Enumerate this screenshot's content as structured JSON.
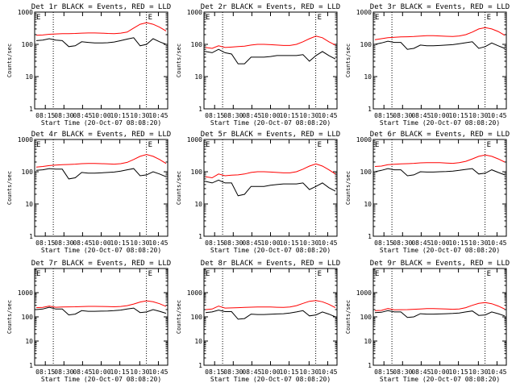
{
  "colors": {
    "events": "#000000",
    "lld": "#ff0000",
    "axes": "#000000",
    "background": "#ffffff"
  },
  "shared": {
    "ylabel": "Counts/sec",
    "xlabel": "Start Time (20-Oct-07 08:08:20)",
    "yticks": [
      "1",
      "10",
      "100",
      "1000"
    ],
    "xticks": [
      "08:15",
      "08:30",
      "08:45",
      "10:00",
      "10:15",
      "10:30",
      "10:45"
    ],
    "marker_label": "E"
  },
  "chart_data": [
    {
      "type": "line",
      "title": "Det 1r BLACK = Events, RED = LLD",
      "ylim": [
        1,
        1000
      ],
      "yscale": "log",
      "series": [
        {
          "color": "events",
          "values": [
            130,
            135,
            150,
            135,
            130,
            85,
            90,
            120,
            115,
            110,
            110,
            112,
            118,
            130,
            145,
            160,
            90,
            100,
            150,
            120,
            100
          ]
        },
        {
          "color": "lld",
          "values": [
            190,
            195,
            205,
            210,
            215,
            215,
            218,
            222,
            225,
            225,
            222,
            218,
            215,
            222,
            240,
            320,
            420,
            470,
            420,
            340,
            260
          ]
        }
      ]
    },
    {
      "type": "line",
      "title": "Det 2r BLACK = Events, RED = LLD",
      "ylim": [
        1,
        1000
      ],
      "yscale": "log",
      "series": [
        {
          "color": "events",
          "values": [
            60,
            55,
            70,
            55,
            50,
            25,
            25,
            40,
            40,
            40,
            42,
            45,
            45,
            45,
            45,
            48,
            30,
            45,
            60,
            45,
            35
          ]
        },
        {
          "color": "lld",
          "values": [
            80,
            75,
            90,
            80,
            82,
            85,
            88,
            95,
            100,
            100,
            98,
            95,
            92,
            92,
            100,
            120,
            150,
            180,
            160,
            120,
            95
          ]
        }
      ]
    },
    {
      "type": "line",
      "title": "Det 3r BLACK = Events, RED = LLD",
      "ylim": [
        1,
        1000
      ],
      "yscale": "log",
      "series": [
        {
          "color": "events",
          "values": [
            100,
            110,
            125,
            115,
            115,
            70,
            75,
            95,
            90,
            90,
            92,
            95,
            98,
            105,
            112,
            120,
            75,
            85,
            110,
            90,
            75
          ]
        },
        {
          "color": "lld",
          "values": [
            140,
            150,
            160,
            165,
            170,
            172,
            175,
            180,
            185,
            185,
            182,
            178,
            175,
            182,
            200,
            240,
            300,
            330,
            300,
            250,
            190
          ]
        }
      ]
    },
    {
      "type": "line",
      "title": "Det 4r BLACK = Events, RED = LLD",
      "ylim": [
        1,
        1000
      ],
      "yscale": "log",
      "series": [
        {
          "color": "events",
          "values": [
            110,
            115,
            125,
            120,
            120,
            60,
            65,
            95,
            90,
            90,
            92,
            95,
            98,
            105,
            115,
            125,
            75,
            80,
            100,
            85,
            70
          ]
        },
        {
          "color": "lld",
          "values": [
            140,
            145,
            155,
            160,
            165,
            168,
            172,
            178,
            180,
            180,
            178,
            175,
            172,
            178,
            195,
            240,
            300,
            340,
            300,
            240,
            180
          ]
        }
      ]
    },
    {
      "type": "line",
      "title": "Det 5r BLACK = Events, RED = LLD",
      "ylim": [
        1,
        1000
      ],
      "yscale": "log",
      "series": [
        {
          "color": "events",
          "values": [
            50,
            45,
            55,
            45,
            45,
            18,
            20,
            35,
            35,
            35,
            38,
            40,
            42,
            42,
            42,
            45,
            28,
            35,
            45,
            32,
            25
          ]
        },
        {
          "color": "lld",
          "values": [
            70,
            65,
            85,
            75,
            78,
            80,
            85,
            95,
            100,
            100,
            98,
            95,
            92,
            92,
            100,
            120,
            150,
            175,
            150,
            115,
            85
          ]
        }
      ]
    },
    {
      "type": "line",
      "title": "Det 6r BLACK = Events, RED = LLD",
      "ylim": [
        1,
        1000
      ],
      "yscale": "log",
      "series": [
        {
          "color": "events",
          "values": [
            100,
            110,
            125,
            115,
            115,
            75,
            80,
            100,
            98,
            98,
            100,
            102,
            105,
            110,
            118,
            125,
            85,
            90,
            115,
            95,
            80
          ]
        },
        {
          "color": "lld",
          "values": [
            145,
            150,
            165,
            170,
            175,
            178,
            182,
            188,
            192,
            192,
            190,
            186,
            182,
            190,
            210,
            250,
            300,
            330,
            300,
            250,
            200
          ]
        }
      ]
    },
    {
      "type": "line",
      "title": "Det 7r BLACK = Events, RED = LLD",
      "ylim": [
        1,
        10000
      ],
      "yscale": "log",
      "series": [
        {
          "color": "events",
          "values": [
            200,
            210,
            250,
            210,
            210,
            120,
            130,
            180,
            170,
            170,
            172,
            175,
            180,
            190,
            210,
            230,
            150,
            160,
            200,
            170,
            140
          ]
        },
        {
          "color": "lld",
          "values": [
            240,
            245,
            280,
            250,
            255,
            260,
            262,
            268,
            272,
            272,
            270,
            266,
            262,
            270,
            290,
            340,
            410,
            460,
            420,
            350,
            270
          ]
        }
      ]
    },
    {
      "type": "line",
      "title": "Det 8r BLACK = Events, RED = LLD",
      "ylim": [
        1,
        10000
      ],
      "yscale": "log",
      "series": [
        {
          "color": "events",
          "values": [
            150,
            160,
            190,
            165,
            165,
            80,
            85,
            130,
            125,
            125,
            128,
            132,
            135,
            145,
            160,
            180,
            110,
            120,
            160,
            130,
            100
          ]
        },
        {
          "color": "lld",
          "values": [
            200,
            210,
            280,
            230,
            235,
            240,
            245,
            252,
            258,
            258,
            255,
            250,
            245,
            255,
            290,
            360,
            440,
            470,
            420,
            330,
            240
          ]
        }
      ]
    },
    {
      "type": "line",
      "title": "Det 9r BLACK = Events, RED = LLD",
      "ylim": [
        1,
        10000
      ],
      "yscale": "log",
      "series": [
        {
          "color": "events",
          "values": [
            150,
            155,
            180,
            160,
            160,
            95,
            100,
            135,
            130,
            130,
            132,
            135,
            138,
            145,
            160,
            175,
            115,
            120,
            160,
            135,
            110
          ]
        },
        {
          "color": "lld",
          "values": [
            180,
            185,
            220,
            195,
            198,
            200,
            205,
            212,
            218,
            218,
            215,
            210,
            205,
            212,
            240,
            300,
            360,
            390,
            350,
            280,
            210
          ]
        }
      ]
    }
  ]
}
